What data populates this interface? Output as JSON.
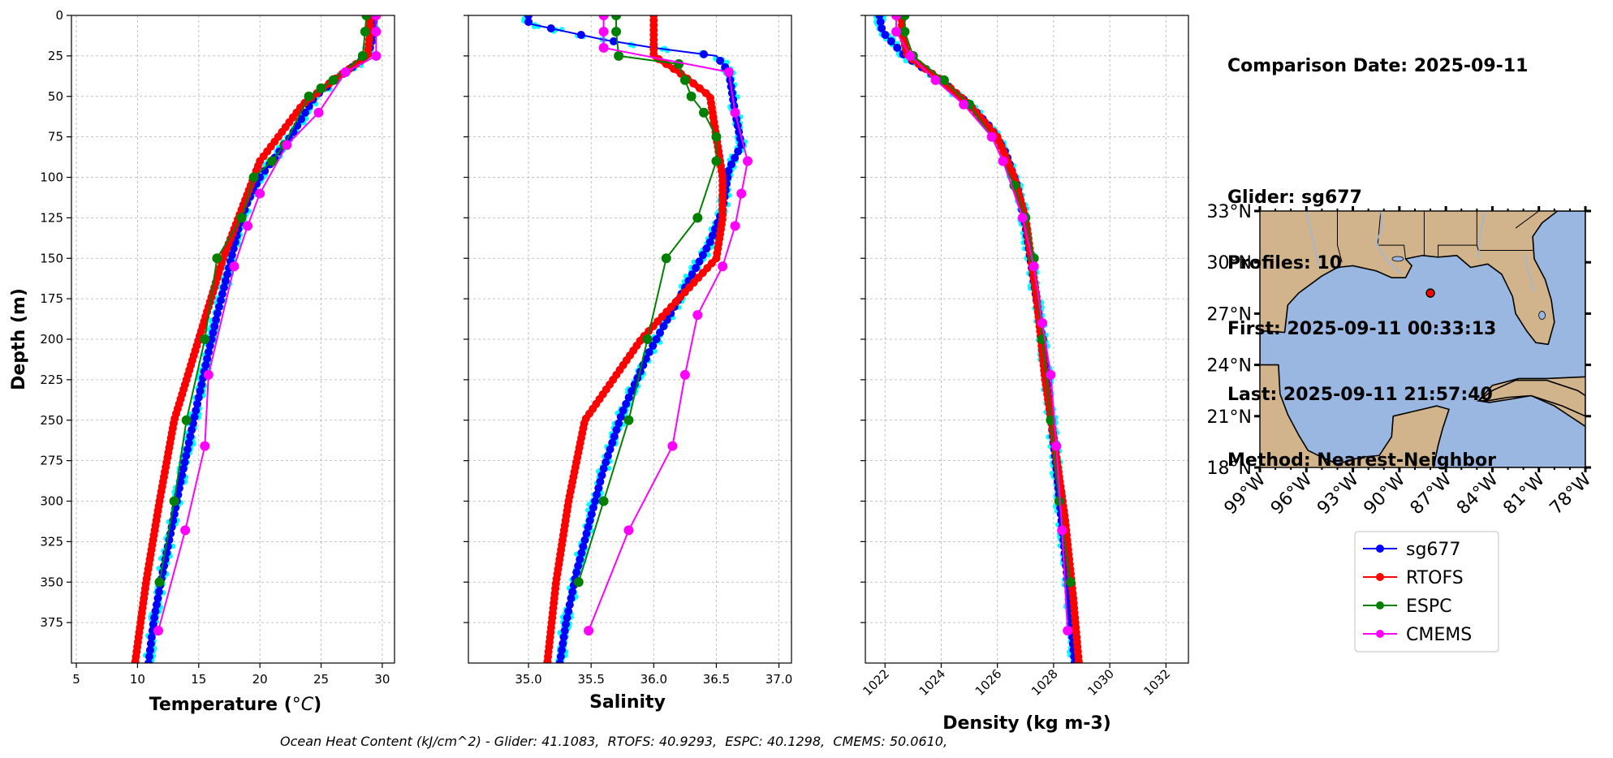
{
  "info": {
    "comparison_date": "Comparison Date: 2025-09-11",
    "glider": "Glider: sg677",
    "profiles": "Profiles: 10",
    "first": "First: 2025-09-11 00:33:13",
    "last": "Last: 2025-09-11 21:57:40",
    "method": "Method: Nearest-Neighbor"
  },
  "footer": "Ocean Heat Content (kJ/cm^2) - Glider: 41.1083,  RTOFS: 40.9293,  ESPC: 40.1298,  CMEMS: 50.0610,",
  "legend": [
    {
      "name": "sg677",
      "color": "#0000ff"
    },
    {
      "name": "RTOFS",
      "color": "#ff0000"
    },
    {
      "name": "ESPC",
      "color": "#008000"
    },
    {
      "name": "CMEMS",
      "color": "#ff00ff"
    }
  ],
  "colors": {
    "glider_points": "#00ffff",
    "land": "#d2b48c",
    "ocean": "#9ab7e1",
    "grid": "#b0b0b0"
  },
  "chart_data": [
    {
      "type": "line",
      "panel": "temperature",
      "xlabel": "Temperature (°C)",
      "ylabel": "Depth (m)",
      "xlim": [
        4.6,
        31
      ],
      "ylim": [
        400,
        0
      ],
      "xticks": [
        5,
        10,
        15,
        20,
        25,
        30
      ],
      "yticks": [
        0,
        25,
        50,
        75,
        100,
        125,
        150,
        175,
        200,
        225,
        250,
        275,
        300,
        325,
        350,
        375
      ],
      "grid": true,
      "series": [
        {
          "name": "sg677",
          "x": [
            29.3,
            29.3,
            29.0,
            28.8,
            27.0,
            24.5,
            22.5,
            21.0,
            20.0,
            19.0,
            18.3,
            17.5,
            16.5,
            15.6,
            14.6,
            13.6,
            12.7,
            11.9,
            11.3,
            10.9
          ],
          "y": [
            0,
            10,
            20,
            25,
            35,
            50,
            75,
            90,
            100,
            115,
            130,
            155,
            185,
            215,
            250,
            285,
            320,
            350,
            375,
            400
          ]
        },
        {
          "name": "RTOFS",
          "x": [
            29.0,
            29.0,
            28.8,
            26.0,
            23.5,
            21.5,
            20.0,
            17.0,
            15.0,
            13.0,
            11.8,
            10.7,
            9.8
          ],
          "y": [
            0,
            10,
            25,
            40,
            55,
            75,
            90,
            150,
            200,
            250,
            300,
            350,
            400
          ]
        },
        {
          "name": "ESPC",
          "x": [
            28.7,
            28.6,
            28.4,
            26.0,
            25.0,
            24.0,
            22.0,
            21.0,
            19.5,
            18.5,
            16.5,
            15.5,
            14.0,
            13.0,
            11.8
          ],
          "y": [
            0,
            10,
            25,
            40,
            45,
            50,
            80,
            90,
            100,
            125,
            150,
            200,
            250,
            300,
            350
          ]
        },
        {
          "name": "CMEMS",
          "x": [
            29.5,
            29.5,
            29.5,
            27.0,
            24.8,
            22.2,
            20.0,
            19.0,
            17.9,
            15.8,
            15.5,
            13.9,
            11.7
          ],
          "y": [
            0,
            10,
            25,
            35,
            60,
            80,
            110,
            130,
            155,
            222,
            266,
            318,
            380
          ]
        }
      ]
    },
    {
      "type": "line",
      "panel": "salinity",
      "xlabel": "Salinity",
      "xlim": [
        34.52,
        37.1
      ],
      "ylim": [
        400,
        0
      ],
      "xticks": [
        35.0,
        35.5,
        36.0,
        36.5,
        37.0
      ],
      "grid": true,
      "series": [
        {
          "name": "sg677",
          "x": [
            35.0,
            35.0,
            35.6,
            36.0,
            36.5,
            36.6,
            36.65,
            36.7,
            36.6,
            36.55,
            36.45,
            36.2,
            35.95,
            35.75,
            35.6,
            35.48,
            35.38,
            35.3,
            35.25
          ],
          "y": [
            0,
            5,
            15,
            20,
            25,
            35,
            60,
            80,
            95,
            120,
            140,
            175,
            210,
            245,
            280,
            315,
            345,
            375,
            400
          ]
        },
        {
          "name": "RTOFS",
          "x": [
            36.0,
            36.0,
            36.0,
            36.2,
            36.45,
            36.5,
            36.55,
            36.55,
            36.5,
            35.9,
            35.45,
            35.32,
            35.22,
            35.15
          ],
          "y": [
            0,
            10,
            25,
            35,
            50,
            75,
            100,
            125,
            150,
            200,
            250,
            300,
            350,
            400
          ]
        },
        {
          "name": "ESPC",
          "x": [
            35.7,
            35.7,
            35.72,
            36.2,
            36.25,
            36.3,
            36.4,
            36.5,
            36.5,
            36.35,
            36.1,
            35.95,
            35.8,
            35.6,
            35.4
          ],
          "y": [
            0,
            10,
            25,
            30,
            40,
            50,
            60,
            75,
            90,
            125,
            150,
            200,
            250,
            300,
            350
          ]
        },
        {
          "name": "CMEMS",
          "x": [
            35.6,
            35.6,
            35.6,
            36.6,
            36.65,
            36.75,
            36.7,
            36.65,
            36.55,
            36.35,
            36.25,
            36.15,
            35.8,
            35.48
          ],
          "y": [
            0,
            10,
            20,
            35,
            60,
            90,
            110,
            130,
            155,
            185,
            222,
            266,
            318,
            380
          ]
        }
      ]
    },
    {
      "type": "line",
      "panel": "density",
      "xlabel": "Density (kg m-3)",
      "xlim": [
        1021.3,
        1032.8
      ],
      "ylim": [
        400,
        0
      ],
      "xticks": [
        1022,
        1024,
        1026,
        1028,
        1030,
        1032
      ],
      "grid": true,
      "series": [
        {
          "name": "sg677",
          "x": [
            1021.8,
            1021.9,
            1022.7,
            1024.0,
            1025.0,
            1025.8,
            1026.3,
            1026.7,
            1027.0,
            1027.3,
            1027.6,
            1027.85,
            1028.1,
            1028.3,
            1028.5,
            1028.65,
            1028.75
          ],
          "y": [
            0,
            10,
            25,
            40,
            55,
            70,
            85,
            105,
            130,
            165,
            200,
            240,
            280,
            315,
            350,
            380,
            400
          ]
        },
        {
          "name": "RTOFS",
          "x": [
            1022.6,
            1022.6,
            1022.8,
            1024.0,
            1025.0,
            1026.0,
            1026.6,
            1027.0,
            1027.4,
            1027.7,
            1028.0,
            1028.4,
            1028.7,
            1028.9
          ],
          "y": [
            0,
            10,
            25,
            40,
            55,
            75,
            100,
            125,
            175,
            225,
            260,
            310,
            360,
            400
          ]
        },
        {
          "name": "ESPC",
          "x": [
            1022.7,
            1022.7,
            1023.0,
            1024.1,
            1025.0,
            1025.8,
            1026.2,
            1026.6,
            1027.0,
            1027.3,
            1027.6,
            1027.9,
            1028.2,
            1028.6
          ],
          "y": [
            0,
            10,
            25,
            40,
            55,
            75,
            90,
            105,
            125,
            150,
            200,
            250,
            300,
            350
          ]
        },
        {
          "name": "CMEMS",
          "x": [
            1022.4,
            1022.4,
            1022.9,
            1023.8,
            1024.8,
            1025.8,
            1026.2,
            1026.9,
            1027.3,
            1027.6,
            1027.9,
            1028.1,
            1028.3,
            1028.5
          ],
          "y": [
            0,
            10,
            25,
            40,
            55,
            75,
            90,
            125,
            155,
            190,
            222,
            266,
            318,
            380
          ]
        }
      ]
    },
    {
      "type": "map",
      "panel": "location",
      "lon_range": [
        -99,
        -78
      ],
      "lat_range": [
        18,
        33
      ],
      "xticks": [
        "99°W",
        "96°W",
        "93°W",
        "90°W",
        "87°W",
        "84°W",
        "81°W",
        "78°W"
      ],
      "yticks": [
        "18°N",
        "21°N",
        "24°N",
        "27°N",
        "30°N",
        "33°N"
      ],
      "marker": {
        "lon": -88.0,
        "lat": 28.2
      }
    }
  ]
}
